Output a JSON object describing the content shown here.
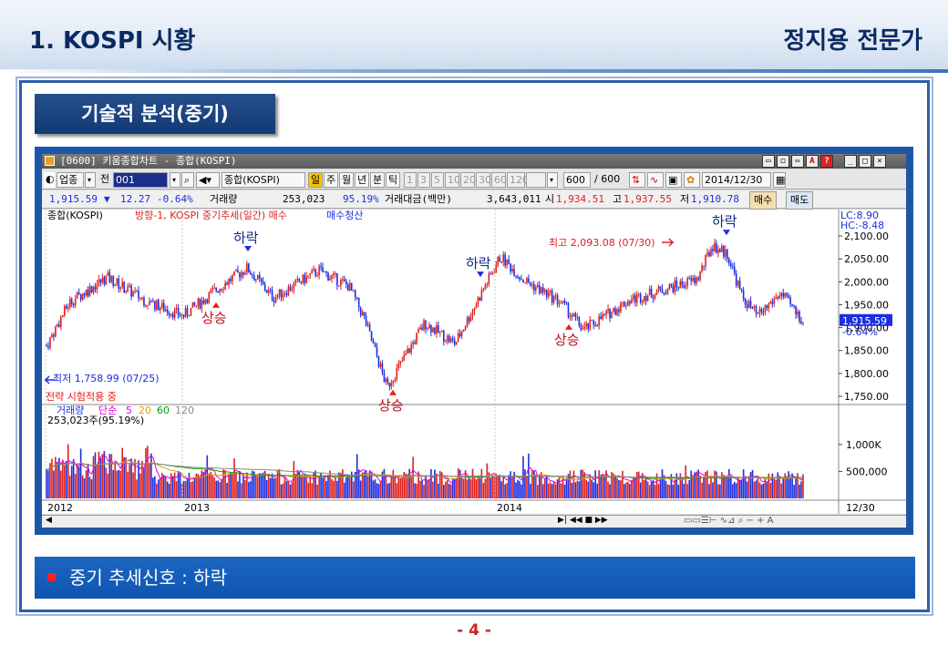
{
  "slide": {
    "title": "1. KOSPI 시황",
    "author": "정지용 전문가",
    "section_tab": "기술적 분석(중기)",
    "signal_text": "중기 추세신호 : 하락",
    "page_number": "- 4 -"
  },
  "window": {
    "title": "[0600] 키움종합차트 - 종합(KOSPI)",
    "buttons": [
      "▭",
      "◻",
      "⇔",
      "A",
      "?",
      "_",
      "□",
      "×"
    ]
  },
  "toolbar": {
    "market": "업종",
    "prev": "전",
    "code": "001",
    "name": "종합(KOSPI)",
    "periods": [
      "일",
      "주",
      "월",
      "년",
      "분",
      "틱"
    ],
    "active_period": "일",
    "minutes": [
      "1",
      "3",
      "5",
      "10",
      "20",
      "30",
      "60",
      "120"
    ],
    "count": "600",
    "count_max": "/ 600",
    "date": "2014/12/30"
  },
  "quote": {
    "price": "1,915.59",
    "change": "12.27",
    "change_pct": "-0.64%",
    "volume_label": "거래량",
    "volume": "253,023",
    "volume_ratio": "95.19%",
    "amount_label": "거래대금(백만)",
    "amount": "3,643,011",
    "open_label": "시",
    "open": "1,934.51",
    "high_label": "고",
    "high": "1,937.55",
    "low_label": "저",
    "low": "1,910.78",
    "buy": "매수",
    "sell": "매도"
  },
  "price_pane": {
    "legend_name": "종합(KOSPI)",
    "legend_signal": "방향-1, KOSPI 중기추세(일간) 매수",
    "legend_exit": "매수청산",
    "lc": "LC:8.90",
    "hc": "HC:-8.48",
    "last_price_label": "1,915.59",
    "last_change_label": "-0.64%",
    "max_annotation": "최고 2,093.08 (07/30)",
    "min_annotation": "최저 1,758.99 (07/25)",
    "strategy_note": "전략 시험적용 중",
    "yticks": [
      "2,100.00",
      "2,050.00",
      "2,000.00",
      "1,950.00",
      "1,900.00",
      "1,850.00",
      "1,800.00",
      "1,750.00"
    ]
  },
  "volume_pane": {
    "legend_name": "거래량",
    "legend_ma": "단순",
    "ma_periods": [
      "5",
      "20",
      "60",
      "120"
    ],
    "value_label": "253,023주(95.19%)",
    "yticks": [
      "1,000K",
      "500,000"
    ]
  },
  "xaxis": {
    "labels": [
      "2012",
      "2013",
      "2014",
      "12/30"
    ]
  },
  "signals": [
    {
      "label": "하락",
      "type": "sell"
    },
    {
      "label": "상승",
      "type": "buy"
    },
    {
      "label": "상승",
      "type": "buy"
    },
    {
      "label": "하락",
      "type": "sell"
    },
    {
      "label": "상승",
      "type": "buy"
    },
    {
      "label": "하락",
      "type": "sell"
    }
  ],
  "colors": {
    "up": "#e0201c",
    "down": "#1c2ee0",
    "brand": "#1e56a7",
    "ma5": "#e000e0",
    "ma20": "#e0a000",
    "ma60": "#00a000",
    "ma120": "#888888"
  },
  "chart_data": {
    "type": "candlestick",
    "series_price_keypoints": [
      {
        "t": 0,
        "v": 1860
      },
      {
        "t": 0.03,
        "v": 1955
      },
      {
        "t": 0.08,
        "v": 2010
      },
      {
        "t": 0.13,
        "v": 1960
      },
      {
        "t": 0.18,
        "v": 1925
      },
      {
        "t": 0.23,
        "v": 1990
      },
      {
        "t": 0.265,
        "v": 2030
      },
      {
        "t": 0.3,
        "v": 1965
      },
      {
        "t": 0.36,
        "v": 2025
      },
      {
        "t": 0.4,
        "v": 1990
      },
      {
        "t": 0.42,
        "v": 1920
      },
      {
        "t": 0.45,
        "v": 1770
      },
      {
        "t": 0.5,
        "v": 1910
      },
      {
        "t": 0.54,
        "v": 1865
      },
      {
        "t": 0.6,
        "v": 2055
      },
      {
        "t": 0.63,
        "v": 2005
      },
      {
        "t": 0.68,
        "v": 1955
      },
      {
        "t": 0.71,
        "v": 1895
      },
      {
        "t": 0.77,
        "v": 1960
      },
      {
        "t": 0.82,
        "v": 1985
      },
      {
        "t": 0.86,
        "v": 2005
      },
      {
        "t": 0.88,
        "v": 2080
      },
      {
        "t": 0.9,
        "v": 2060
      },
      {
        "t": 0.92,
        "v": 1965
      },
      {
        "t": 0.94,
        "v": 1925
      },
      {
        "t": 0.97,
        "v": 1975
      },
      {
        "t": 1,
        "v": 1915
      }
    ],
    "ylim": [
      1740,
      2130
    ],
    "volume_ylim": [
      0,
      1300000
    ]
  }
}
